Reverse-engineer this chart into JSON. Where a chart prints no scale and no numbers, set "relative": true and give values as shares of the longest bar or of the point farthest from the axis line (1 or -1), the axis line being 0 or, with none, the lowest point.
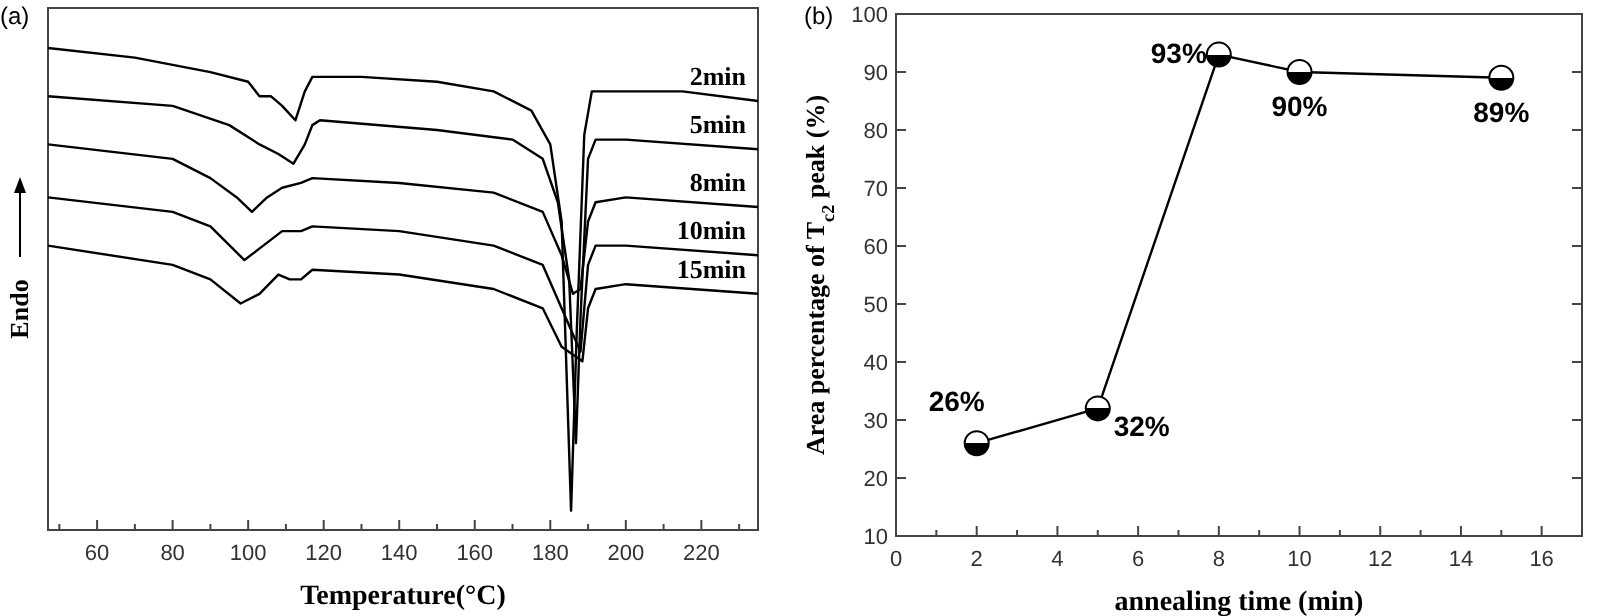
{
  "chart_data": [
    {
      "type": "line",
      "title": "(a)",
      "xlabel": "Temperature(°C)",
      "ylabel": "Endo",
      "relative": true,
      "marker": "none",
      "grid": false,
      "legend": false,
      "xlim": [
        47,
        235
      ],
      "xticks": [
        {
          "value": 50,
          "label": null
        },
        60,
        {
          "value": 70,
          "label": null
        },
        80,
        {
          "value": 90,
          "label": null
        },
        100,
        {
          "value": 110,
          "label": null
        },
        120,
        {
          "value": 130,
          "label": null
        },
        140,
        {
          "value": 150,
          "label": null
        },
        160,
        {
          "value": 170,
          "label": null
        },
        180,
        {
          "value": 190,
          "label": null
        },
        200,
        {
          "value": 210,
          "label": null
        },
        220,
        {
          "value": 230,
          "label": null
        }
      ],
      "series": [
        {
          "name": "2min",
          "color": "#000000",
          "x": [
            47,
            70,
            90,
            100,
            103,
            106,
            109,
            112.5,
            115,
            117,
            130,
            150,
            165,
            175,
            180,
            183,
            185.5,
            187,
            189,
            191,
            195,
            215,
            235
          ],
          "values": [
            1.0,
            0.98,
            0.95,
            0.93,
            0.9,
            0.9,
            0.88,
            0.85,
            0.91,
            0.94,
            0.94,
            0.93,
            0.91,
            0.87,
            0.8,
            0.64,
            0.04,
            0.41,
            0.82,
            0.91,
            0.91,
            0.91,
            0.89
          ]
        },
        {
          "name": "5min",
          "color": "#000000",
          "x": [
            47,
            80,
            95,
            103,
            108,
            112,
            115,
            117,
            119,
            150,
            170,
            178,
            182,
            185,
            186.8,
            188,
            190,
            192,
            200,
            235
          ],
          "values": [
            0.9,
            0.88,
            0.84,
            0.8,
            0.78,
            0.76,
            0.8,
            0.84,
            0.85,
            0.83,
            0.81,
            0.77,
            0.68,
            0.52,
            0.18,
            0.44,
            0.77,
            0.81,
            0.81,
            0.79
          ]
        },
        {
          "name": "8min",
          "color": "#000000",
          "x": [
            47,
            80,
            90,
            97,
            101,
            105,
            109,
            114,
            117,
            140,
            165,
            178,
            183,
            186,
            188,
            190,
            192,
            200,
            235
          ],
          "values": [
            0.8,
            0.77,
            0.73,
            0.69,
            0.66,
            0.69,
            0.71,
            0.72,
            0.73,
            0.72,
            0.7,
            0.66,
            0.57,
            0.49,
            0.5,
            0.64,
            0.68,
            0.69,
            0.67
          ]
        },
        {
          "name": "10min",
          "color": "#000000",
          "x": [
            47,
            80,
            90,
            99,
            104,
            109,
            114,
            117,
            140,
            165,
            178,
            183,
            188,
            190,
            192,
            200,
            235
          ],
          "values": [
            0.69,
            0.66,
            0.63,
            0.56,
            0.59,
            0.62,
            0.62,
            0.63,
            0.62,
            0.59,
            0.55,
            0.46,
            0.37,
            0.55,
            0.59,
            0.59,
            0.57
          ]
        },
        {
          "name": "15min",
          "color": "#000000",
          "x": [
            47,
            80,
            90,
            98,
            103,
            108,
            111,
            114,
            117,
            140,
            165,
            178,
            183,
            188.5,
            190,
            192,
            200,
            235
          ],
          "values": [
            0.59,
            0.55,
            0.52,
            0.47,
            0.49,
            0.53,
            0.52,
            0.52,
            0.54,
            0.53,
            0.5,
            0.46,
            0.38,
            0.35,
            0.46,
            0.5,
            0.51,
            0.49
          ]
        }
      ]
    },
    {
      "type": "line",
      "title": "(b)",
      "xlabel": "annealing time (min)",
      "ylabel": "Area percentage of  T$_{c2}$ peak (%)",
      "marker": "circle",
      "grid": false,
      "xlim": [
        0,
        17
      ],
      "xticks": [
        0,
        {
          "value": 1,
          "label": null
        },
        2,
        {
          "value": 3,
          "label": null
        },
        4,
        {
          "value": 5,
          "label": null
        },
        6,
        {
          "value": 7,
          "label": null
        },
        8,
        {
          "value": 9,
          "label": null
        },
        10,
        {
          "value": 11,
          "label": null
        },
        12,
        {
          "value": 13,
          "label": null
        },
        14,
        {
          "value": 15,
          "label": null
        },
        16
      ],
      "ylim": [
        10,
        100
      ],
      "yticks": [
        10,
        20,
        30,
        40,
        50,
        60,
        70,
        80,
        90,
        100
      ],
      "series": [
        {
          "color": "#000000",
          "x": [
            2,
            5,
            8,
            10,
            15
          ],
          "values": [
            26,
            32,
            93,
            90,
            89
          ],
          "value_labels": [
            "26%",
            "32%",
            "93%",
            "90%",
            "89%"
          ]
        }
      ]
    }
  ]
}
